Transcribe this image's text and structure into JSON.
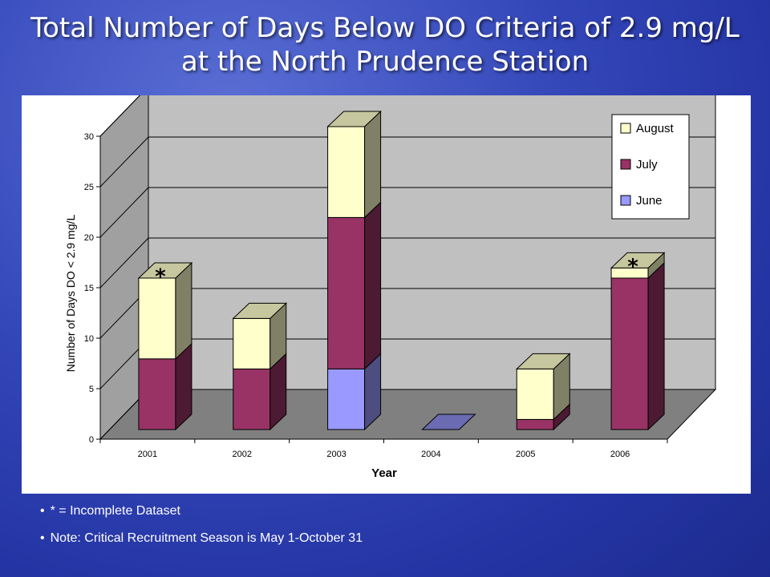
{
  "title_line1": "Total Number of Days Below DO Criteria of 2.9 mg/L",
  "title_line2": "at the North Prudence Station",
  "notes": [
    "* = Incomplete Dataset",
    "Note:  Critical Recruitment Season is May 1-October 31"
  ],
  "chart_data": {
    "type": "bar",
    "stacked": true,
    "three_d": true,
    "categories": [
      "2001",
      "2002",
      "2003",
      "2004",
      "2005",
      "2006"
    ],
    "series": [
      {
        "name": "June",
        "values": [
          0,
          0,
          6,
          0,
          0,
          0
        ],
        "color": "#9999ff"
      },
      {
        "name": "July",
        "values": [
          7,
          6,
          15,
          0,
          1,
          15
        ],
        "color": "#993366"
      },
      {
        "name": "August",
        "values": [
          8,
          5,
          9,
          0,
          5,
          1
        ],
        "color": "#ffffcc"
      }
    ],
    "incomplete_marker": "*",
    "incomplete_categories": [
      "2001",
      "2006"
    ],
    "xlabel": "Year",
    "ylabel": "Number of Days DO < 2.9 mg/L",
    "ylim": [
      0,
      30
    ],
    "yticks": [
      0,
      5,
      10,
      15,
      20,
      25,
      30
    ],
    "grid": true,
    "legend_position": "top-right",
    "legend_order": [
      "August",
      "July",
      "June"
    ],
    "wall_color": "#c0c0c0",
    "floor_color": "#808080"
  }
}
